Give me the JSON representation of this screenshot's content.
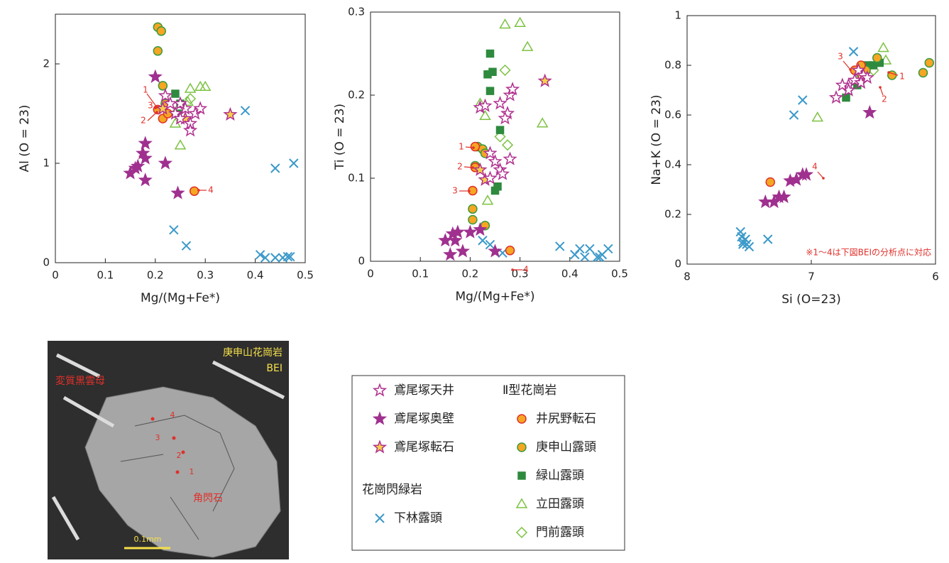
{
  "chart_data": [
    {
      "type": "scatter",
      "xlabel": "Mg/(Mg+Fe*)",
      "ylabel": "Al (O = 23)",
      "xlim": [
        0,
        0.5
      ],
      "xticks": [
        0,
        0.1,
        0.2,
        0.3,
        0.4,
        0.5
      ],
      "ylim": [
        0,
        2.5
      ],
      "yticks": [
        0,
        1,
        2
      ],
      "annotations": [
        "1",
        "2",
        "3",
        "4"
      ],
      "series": [
        {
          "x": [
            0.22,
            0.23,
            0.24,
            0.25,
            0.26,
            0.27,
            0.28,
            0.29,
            0.27,
            0.25
          ],
          "values": [
            1.68,
            1.6,
            1.5,
            1.45,
            1.55,
            1.4,
            1.5,
            1.55,
            1.33,
            1.6
          ]
        },
        {
          "x": [
            0.2,
            0.18,
            0.175,
            0.165,
            0.16,
            0.15,
            0.18,
            0.18,
            0.22,
            0.245
          ],
          "values": [
            1.87,
            1.2,
            1.1,
            0.97,
            0.95,
            0.9,
            1.05,
            0.83,
            1.0,
            0.7
          ]
        },
        {
          "x": [
            0.35,
            0.215,
            0.26
          ],
          "values": [
            1.49,
            1.55,
            1.45
          ]
        },
        {
          "x": [
            0.205,
            0.215,
            0.225,
            0.278
          ],
          "values": [
            1.54,
            1.45,
            1.5,
            0.72
          ]
        },
        {
          "x": [
            0.205,
            0.212,
            0.205,
            0.215,
            0.22
          ],
          "values": [
            2.37,
            2.33,
            2.13,
            1.78,
            1.6
          ]
        },
        {
          "x": [
            0.24,
            0.25,
            0.245
          ],
          "values": [
            1.7,
            1.6,
            1.5
          ]
        },
        {
          "x": [
            0.27,
            0.29,
            0.3,
            0.25,
            0.24,
            0.265
          ],
          "values": [
            1.75,
            1.77,
            1.77,
            1.18,
            1.4,
            1.62
          ]
        },
        {
          "x": [
            0.27,
            0.23
          ],
          "values": [
            1.65,
            1.55
          ]
        },
        {
          "x": [
            0.38,
            0.44,
            0.477,
            0.237,
            0.262,
            0.41,
            0.42,
            0.44,
            0.455,
            0.465,
            0.47
          ],
          "values": [
            1.53,
            0.95,
            1.0,
            0.33,
            0.17,
            0.08,
            0.05,
            0.05,
            0.05,
            0.06,
            0.06
          ]
        }
      ]
    },
    {
      "type": "scatter",
      "xlabel": "Mg/(Mg+Fe*)",
      "ylabel": "Ti (O = 23)",
      "xlim": [
        0,
        0.5
      ],
      "xticks": [
        0,
        0.1,
        0.2,
        0.3,
        0.4,
        0.5
      ],
      "ylim": [
        0,
        0.3
      ],
      "yticks": [
        0,
        0.1,
        0.2,
        0.3
      ],
      "annotations": [
        "1",
        "2",
        "3",
        "4"
      ],
      "series": [
        {
          "x": [
            0.22,
            0.23,
            0.26,
            0.28,
            0.285,
            0.275,
            0.27,
            0.24,
            0.25,
            0.26,
            0.28,
            0.24,
            0.265
          ],
          "values": [
            0.185,
            0.187,
            0.19,
            0.2,
            0.207,
            0.178,
            0.172,
            0.13,
            0.12,
            0.11,
            0.123,
            0.1,
            0.105
          ]
        },
        {
          "x": [
            0.15,
            0.165,
            0.175,
            0.16,
            0.185,
            0.2,
            0.22,
            0.25,
            0.17
          ],
          "values": [
            0.025,
            0.033,
            0.035,
            0.008,
            0.012,
            0.035,
            0.038,
            0.012,
            0.025
          ]
        },
        {
          "x": [
            0.35,
            0.22,
            0.23
          ],
          "values": [
            0.217,
            0.11,
            0.098
          ]
        },
        {
          "x": [
            0.21,
            0.21,
            0.205,
            0.28
          ],
          "values": [
            0.138,
            0.113,
            0.085,
            0.013
          ]
        },
        {
          "x": [
            0.205,
            0.205,
            0.23,
            0.21,
            0.215,
            0.225,
            0.23
          ],
          "values": [
            0.063,
            0.05,
            0.043,
            0.115,
            0.138,
            0.135,
            0.13
          ]
        },
        {
          "x": [
            0.24,
            0.235,
            0.245,
            0.24,
            0.26,
            0.255,
            0.25
          ],
          "values": [
            0.25,
            0.225,
            0.228,
            0.205,
            0.158,
            0.09,
            0.085
          ]
        },
        {
          "x": [
            0.27,
            0.3,
            0.315,
            0.345,
            0.23,
            0.235,
            0.22
          ],
          "values": [
            0.285,
            0.287,
            0.258,
            0.166,
            0.175,
            0.073,
            0.19
          ]
        },
        {
          "x": [
            0.27,
            0.26,
            0.275
          ],
          "values": [
            0.23,
            0.15,
            0.14
          ]
        },
        {
          "x": [
            0.38,
            0.41,
            0.42,
            0.43,
            0.44,
            0.455,
            0.46,
            0.465,
            0.477,
            0.24,
            0.265,
            0.225
          ],
          "values": [
            0.018,
            0.008,
            0.015,
            0.005,
            0.015,
            0.005,
            0.005,
            0.008,
            0.015,
            0.02,
            0.01,
            0.025
          ]
        }
      ]
    },
    {
      "type": "scatter",
      "xlabel": "Si (O=23)",
      "ylabel": "Na+K (O = 23)",
      "xlim": [
        8,
        6
      ],
      "xticks": [
        8,
        7,
        6
      ],
      "ylim": [
        0,
        1
      ],
      "yticks": [
        0,
        0.2,
        0.4,
        0.6,
        0.8,
        1
      ],
      "annotations": [
        "1",
        "2",
        "3",
        "4"
      ],
      "note": "※1～4は下図BEIの分析点に対応",
      "series": [
        {
          "x": [
            6.7,
            6.65,
            6.62,
            6.58,
            6.7,
            6.75,
            6.6,
            6.55,
            6.8
          ],
          "values": [
            0.72,
            0.74,
            0.78,
            0.76,
            0.7,
            0.72,
            0.73,
            0.75,
            0.67
          ]
        },
        {
          "x": [
            7.37,
            7.3,
            7.26,
            7.22,
            7.17,
            7.12,
            7.07,
            7.04,
            6.53
          ],
          "values": [
            0.25,
            0.25,
            0.27,
            0.27,
            0.335,
            0.34,
            0.36,
            0.36,
            0.61
          ]
        },
        {
          "x": [
            6.6,
            6.7
          ],
          "values": [
            0.76,
            0.7
          ]
        },
        {
          "x": [
            7.33,
            6.65,
            6.58,
            6.6
          ],
          "values": [
            0.33,
            0.78,
            0.75,
            0.8
          ]
        },
        {
          "x": [
            6.35,
            6.1,
            6.05,
            6.47,
            6.6,
            6.56
          ],
          "values": [
            0.76,
            0.77,
            0.81,
            0.83,
            0.74,
            0.78
          ]
        },
        {
          "x": [
            6.55,
            6.5,
            6.63,
            6.72,
            6.45
          ],
          "values": [
            0.8,
            0.8,
            0.72,
            0.67,
            0.81
          ]
        },
        {
          "x": [
            6.42,
            6.4,
            6.95,
            6.6
          ],
          "values": [
            0.87,
            0.82,
            0.59,
            0.77
          ]
        },
        {
          "x": [
            6.5
          ],
          "values": [
            0.78
          ]
        },
        {
          "x": [
            7.57,
            7.56,
            7.55,
            7.55,
            7.53,
            7.52,
            7.5,
            7.35,
            7.14,
            7.07,
            6.66
          ],
          "values": [
            0.13,
            0.11,
            0.09,
            0.08,
            0.1,
            0.08,
            0.07,
            0.1,
            0.6,
            0.66,
            0.855
          ]
        }
      ]
    }
  ],
  "legend": {
    "groups": [
      "Ⅱ型花崗岩",
      "花崗閃緑岩"
    ],
    "entries": [
      {
        "name": "鳶尾塚天井",
        "marker": "star",
        "color": "#b0308f",
        "fill": "#ffffff"
      },
      {
        "name": "鳶尾塚奥壁",
        "marker": "star",
        "color": "#a0308f",
        "fill": "#a0308f"
      },
      {
        "name": "鳶尾塚転石",
        "marker": "star",
        "color": "#b0308f",
        "fill": "#f5d04a"
      },
      {
        "name": "井尻野転石",
        "marker": "circle",
        "color": "#e0302a",
        "fill": "#f5a623"
      },
      {
        "name": "庚申山露頭",
        "marker": "circle",
        "color": "#3a9a3e",
        "fill": "#f5a623"
      },
      {
        "name": "緑山露頭",
        "marker": "square",
        "color": "#2e8a3e",
        "fill": "#2e8a3e"
      },
      {
        "name": "立田露頭",
        "marker": "triangle",
        "color": "#7cc242",
        "fill": "none"
      },
      {
        "name": "門前露頭",
        "marker": "diamond",
        "color": "#7cc242",
        "fill": "none"
      },
      {
        "name": "下林露頭",
        "marker": "cross",
        "color": "#3b99c9",
        "fill": "none"
      }
    ]
  },
  "image": {
    "title": "庚申山花崗岩",
    "subtitle": "BEI",
    "labels": [
      "変質黒雲母",
      "角閃石"
    ],
    "scale": "0.1mm",
    "points": [
      "1",
      "2",
      "3",
      "4"
    ]
  }
}
